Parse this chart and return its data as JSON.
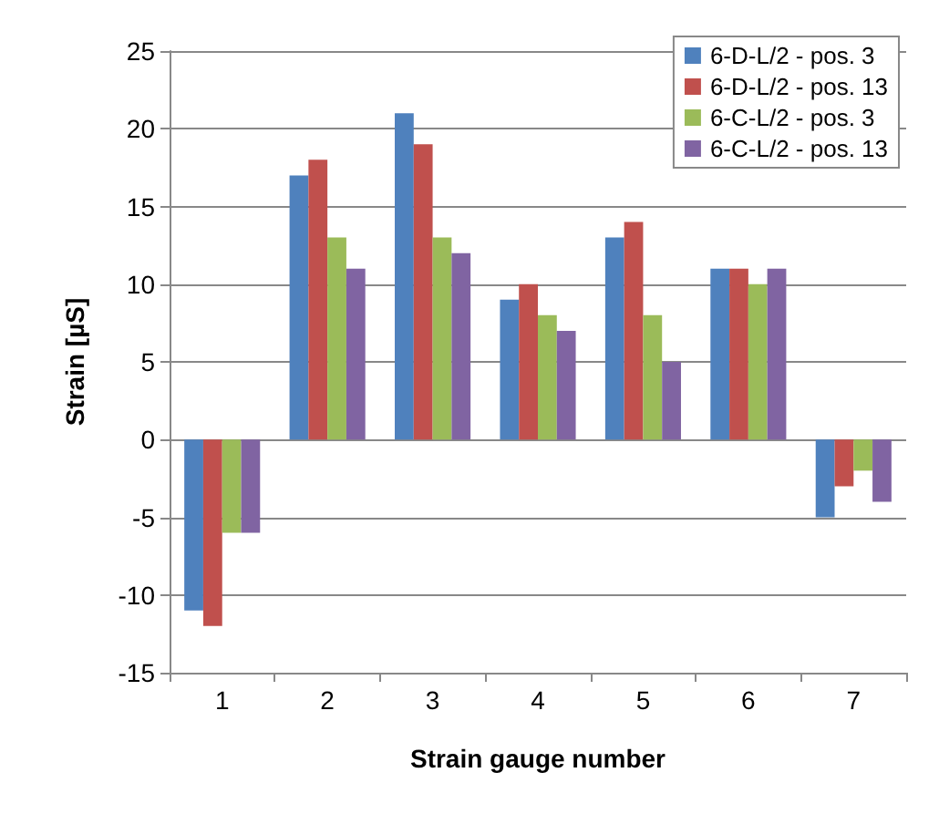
{
  "chart_data": {
    "type": "bar",
    "xlabel": "Strain gauge number",
    "ylabel": "Strain [µS]",
    "categories": [
      "1",
      "2",
      "3",
      "4",
      "5",
      "6",
      "7"
    ],
    "series": [
      {
        "name": "6-D-L/2 - pos. 3",
        "color": "#4f81bd",
        "values": [
          -11,
          17,
          21,
          9,
          13,
          11,
          -5
        ]
      },
      {
        "name": "6-D-L/2 - pos. 13",
        "color": "#c0504d",
        "values": [
          -12,
          18,
          19,
          10,
          14,
          11,
          -3
        ]
      },
      {
        "name": "6-C-L/2 - pos. 3",
        "color": "#9bbb59",
        "values": [
          -6,
          13,
          13,
          8,
          8,
          10,
          -2
        ]
      },
      {
        "name": "6-C-L/2 - pos. 13",
        "color": "#8064a2",
        "values": [
          -6,
          11,
          12,
          7,
          5,
          11,
          -4
        ]
      }
    ],
    "ylim": [
      -15,
      25
    ],
    "yticks": [
      -15,
      -10,
      -5,
      0,
      5,
      10,
      15,
      20,
      25
    ],
    "grid": "y",
    "legend": "top right"
  }
}
